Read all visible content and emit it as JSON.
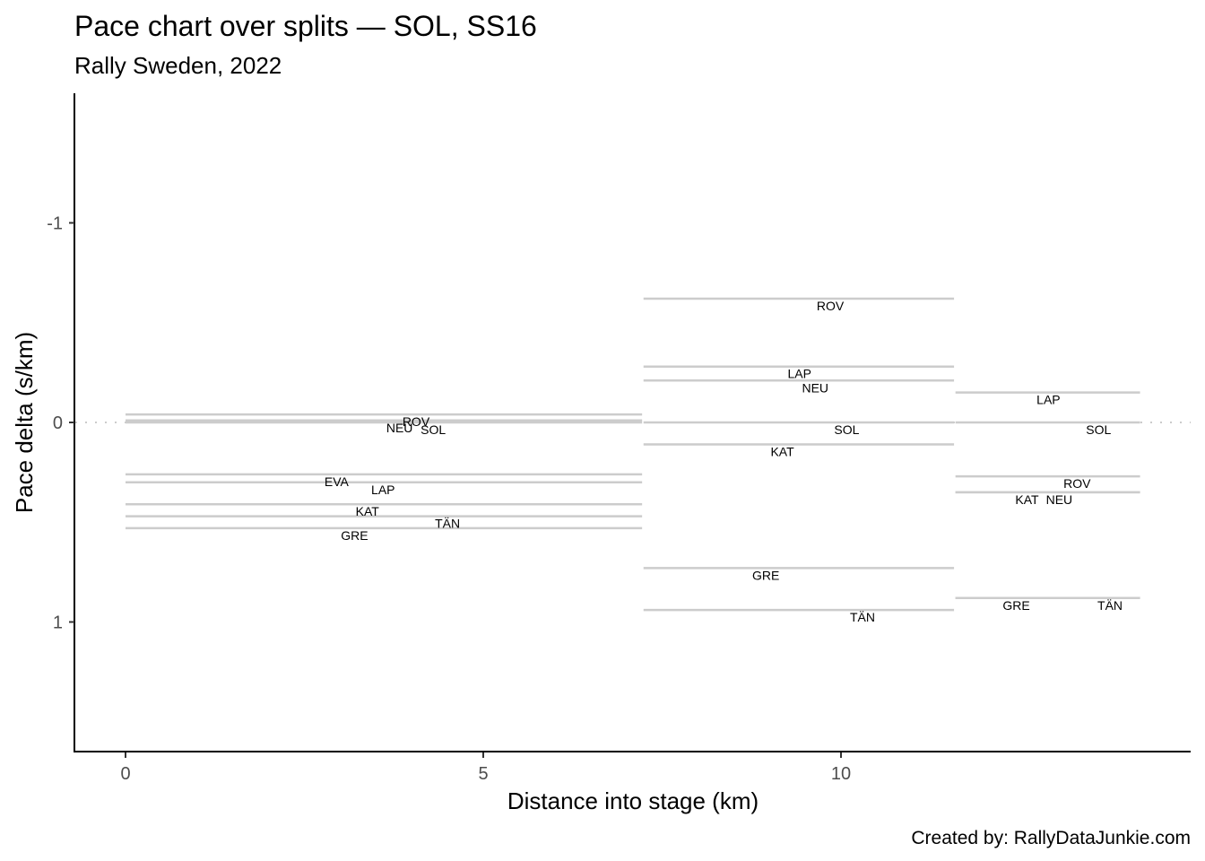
{
  "chart_data": {
    "type": "line",
    "title": "Pace chart over splits — SOL, SS16",
    "subtitle": "Rally Sweden, 2022",
    "xlabel": "Distance into stage (km)",
    "ylabel": "Pace delta (s/km)",
    "caption": "Created by: RallyDataJunkie.com",
    "xlim": [
      -0.7,
      14.9
    ],
    "ylim": [
      1.65,
      -1.65
    ],
    "y_reversed": true,
    "x_ticks": [
      0,
      5,
      10
    ],
    "x_tick_labels": [
      "0",
      "5",
      "10"
    ],
    "y_ticks": [
      -1,
      0,
      1
    ],
    "y_tick_labels": [
      "-1",
      "0",
      "1"
    ],
    "reference_line": 0,
    "line_color": "#cccccc",
    "splits": [
      {
        "start": 0,
        "end": 7.22,
        "drivers": [
          {
            "code": "ROV",
            "delta": -0.04
          },
          {
            "code": "NEU",
            "delta": -0.01
          },
          {
            "code": "SOL",
            "delta": 0.0
          },
          {
            "code": "EVA",
            "delta": 0.26
          },
          {
            "code": "LAP",
            "delta": 0.3
          },
          {
            "code": "KAT",
            "delta": 0.41
          },
          {
            "code": "TÄN",
            "delta": 0.47
          },
          {
            "code": "GRE",
            "delta": 0.53
          }
        ]
      },
      {
        "start": 7.24,
        "end": 11.58,
        "drivers": [
          {
            "code": "ROV",
            "delta": -0.62
          },
          {
            "code": "LAP",
            "delta": -0.28
          },
          {
            "code": "NEU",
            "delta": -0.21
          },
          {
            "code": "SOL",
            "delta": 0.0
          },
          {
            "code": "KAT",
            "delta": 0.11
          },
          {
            "code": "GRE",
            "delta": 0.73
          },
          {
            "code": "TÄN",
            "delta": 0.94
          }
        ]
      },
      {
        "start": 11.6,
        "end": 14.18,
        "drivers": [
          {
            "code": "LAP",
            "delta": -0.15
          },
          {
            "code": "SOL",
            "delta": 0.0
          },
          {
            "code": "ROV",
            "delta": 0.27
          },
          {
            "code": "KAT",
            "delta": 0.35
          },
          {
            "code": "NEU",
            "delta": 0.35
          },
          {
            "code": "GRE",
            "delta": 0.88
          },
          {
            "code": "TÄN",
            "delta": 0.88
          }
        ]
      }
    ]
  }
}
